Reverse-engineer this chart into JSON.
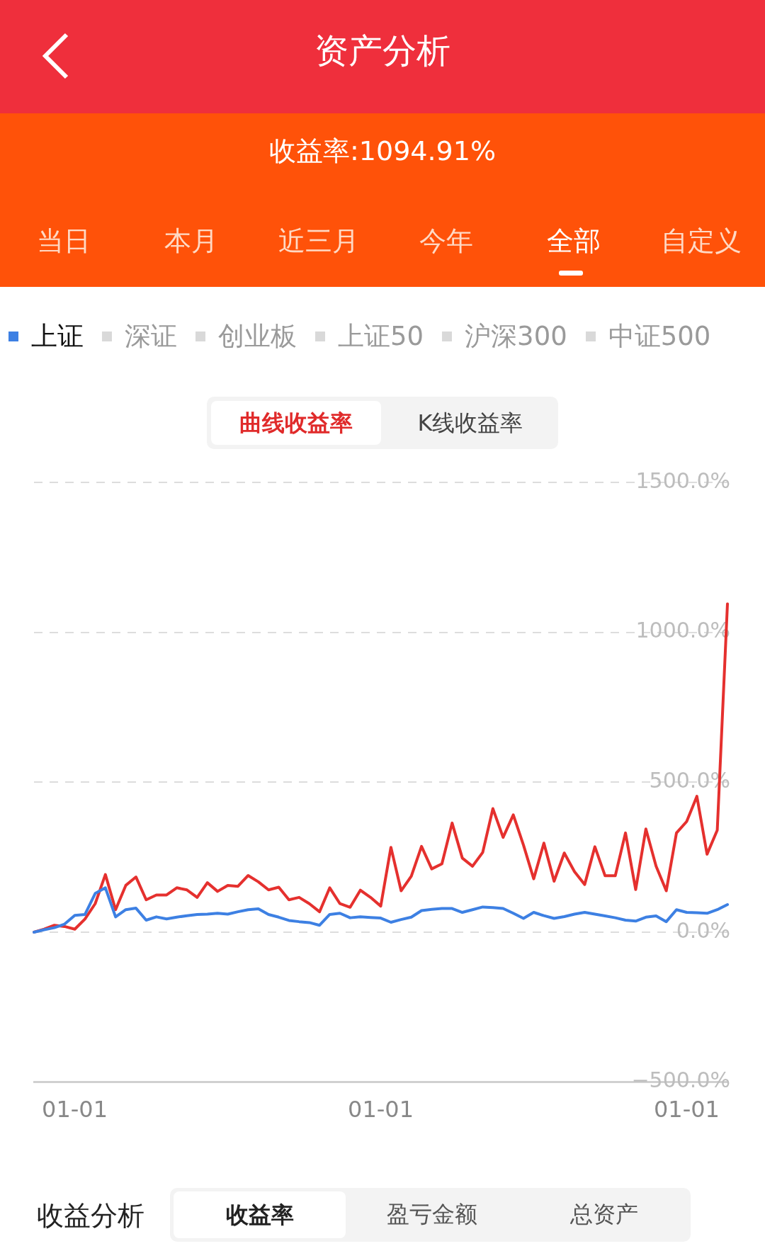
{
  "chart_data": {
    "type": "line",
    "title": "资产分析",
    "subtitle": "收益率:1094.91%",
    "annotations": [
      "当日",
      "本月",
      "近三月",
      "今年",
      "全部",
      "自定义",
      "深证",
      "创业板",
      "上证50",
      "沪深300",
      "中证500",
      "曲线收益率",
      "K线收益率",
      "收益分析",
      "收益率",
      "盈亏金额",
      "总资产"
    ],
    "series": [
      {
        "color": "#e5302e",
        "values": [
          0,
          10,
          23,
          19,
          10,
          44,
          95,
          192,
          75,
          156,
          184,
          108,
          124,
          124,
          148,
          141,
          116,
          165,
          136,
          156,
          153,
          189,
          168,
          141,
          150,
          108,
          116,
          95,
          68,
          148,
          95,
          83,
          140,
          116,
          87,
          283,
          138,
          187,
          286,
          211,
          228,
          364,
          247,
          220,
          266,
          412,
          316,
          391,
          290,
          178,
          297,
          170,
          264,
          202,
          159,
          285,
          188,
          188,
          331,
          142,
          344,
          220,
          138,
          331,
          369,
          453,
          260,
          340,
          1095
        ]
      },
      {
        "name": "上证",
        "color": "#3d80e3",
        "values": [
          0,
          8,
          15,
          27,
          56,
          59,
          129,
          148,
          51,
          75,
          80,
          40,
          51,
          44,
          50,
          55,
          59,
          60,
          63,
          60,
          68,
          75,
          78,
          59,
          50,
          39,
          35,
          32,
          23,
          59,
          63,
          48,
          51,
          49,
          47,
          33,
          42,
          50,
          72,
          76,
          79,
          79,
          66,
          75,
          84,
          82,
          79,
          63,
          46,
          66,
          55,
          46,
          52,
          60,
          66,
          60,
          54,
          48,
          40,
          37,
          50,
          54,
          35,
          75,
          66,
          65,
          63,
          75,
          92
        ]
      }
    ],
    "categories": [
      null,
      null,
      null,
      null,
      "01-01",
      null,
      null,
      null,
      null,
      null,
      null,
      null,
      null,
      null,
      null,
      null,
      null,
      null,
      null,
      null,
      null,
      null,
      null,
      null,
      null,
      null,
      null,
      null,
      null,
      null,
      null,
      null,
      null,
      null,
      "01-01",
      null,
      null,
      null,
      null,
      null,
      null,
      null,
      null,
      null,
      null,
      null,
      null,
      null,
      null,
      null,
      null,
      null,
      null,
      null,
      null,
      null,
      null,
      null,
      null,
      null,
      null,
      null,
      null,
      null,
      "01-01",
      null,
      null,
      null,
      null
    ],
    "ylim": [
      -500,
      1500
    ],
    "yticks": [
      {
        "value": -500,
        "label": "−500.0%"
      },
      {
        "value": 0,
        "label": "0.0%"
      },
      {
        "value": 500,
        "label": "500.0%"
      },
      {
        "value": 1000,
        "label": "1000.0%"
      },
      {
        "value": 1500,
        "label": "1500.0%"
      }
    ],
    "grid": "y",
    "legend": "top left",
    "marker": "none",
    "line_style": "solid"
  }
}
